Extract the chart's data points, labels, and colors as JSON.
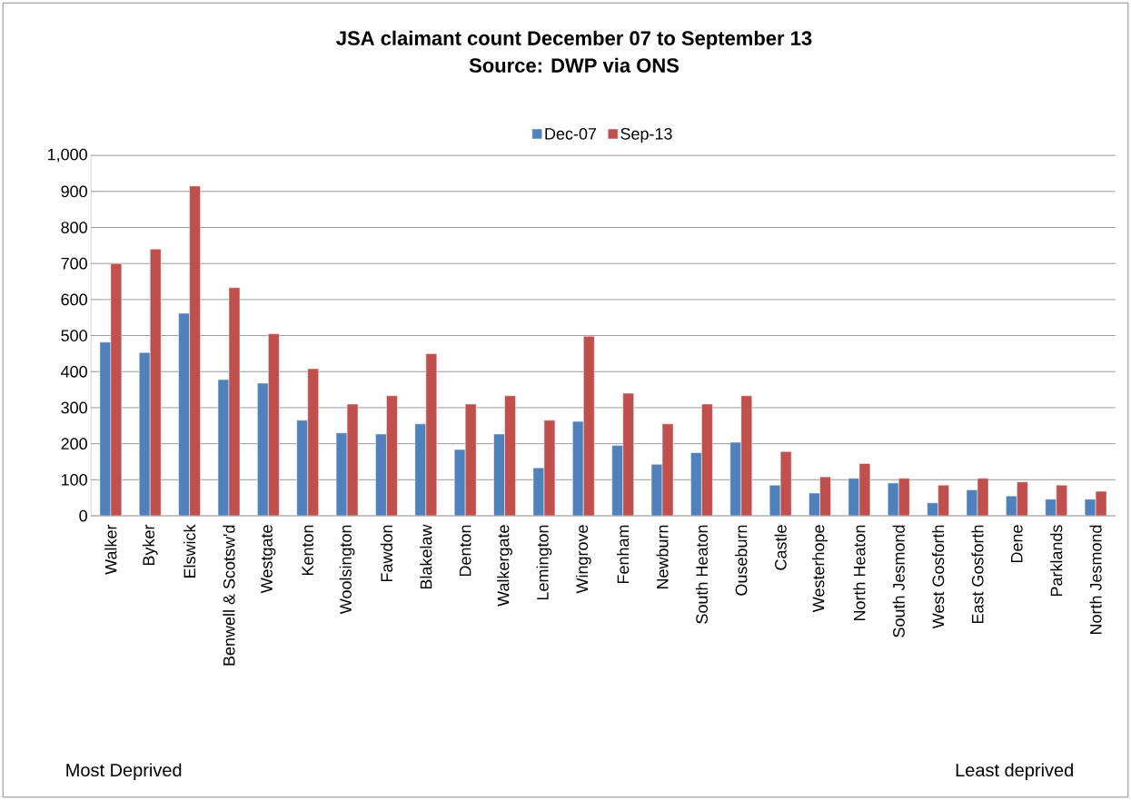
{
  "chart_data": {
    "type": "bar",
    "title": "JSA claimant count December 07 to September 13",
    "subtitle": "Source: DWP via ONS",
    "categories": [
      "Walker",
      "Byker",
      "Elswick",
      "Benwell & Scotsw'd",
      "Westgate",
      "Kenton",
      "Woolsington",
      "Fawdon",
      "Blakelaw",
      "Denton",
      "Walkergate",
      "Lemington",
      "Wingrove",
      "Fenham",
      "Newburn",
      "South Heaton",
      "Ouseburn",
      "Castle",
      "Westerhope",
      "North Heaton",
      "South Jesmond",
      "West Gosforth",
      "East Gosforth",
      "Dene",
      "Parklands",
      "North Jesmond"
    ],
    "series": [
      {
        "name": "Dec-07",
        "color": "#4f81bd",
        "values": [
          482,
          453,
          562,
          378,
          368,
          265,
          230,
          227,
          255,
          184,
          227,
          133,
          262,
          195,
          143,
          175,
          204,
          85,
          63,
          104,
          91,
          36,
          72,
          55,
          46,
          46
        ]
      },
      {
        "name": "Sep-13",
        "color": "#c0504d",
        "values": [
          700,
          740,
          915,
          633,
          505,
          408,
          310,
          333,
          450,
          310,
          333,
          265,
          498,
          340,
          255,
          310,
          333,
          178,
          108,
          145,
          104,
          85,
          104,
          94,
          85,
          68
        ]
      }
    ],
    "ylim": [
      0,
      1000
    ],
    "yticks": [
      0,
      100,
      200,
      300,
      400,
      500,
      600,
      700,
      800,
      900,
      {
        "value": 1000,
        "label": "1,000"
      }
    ],
    "grid": "y",
    "legend": "top",
    "annotations": [
      "Most Deprived",
      "Least deprived"
    ]
  }
}
